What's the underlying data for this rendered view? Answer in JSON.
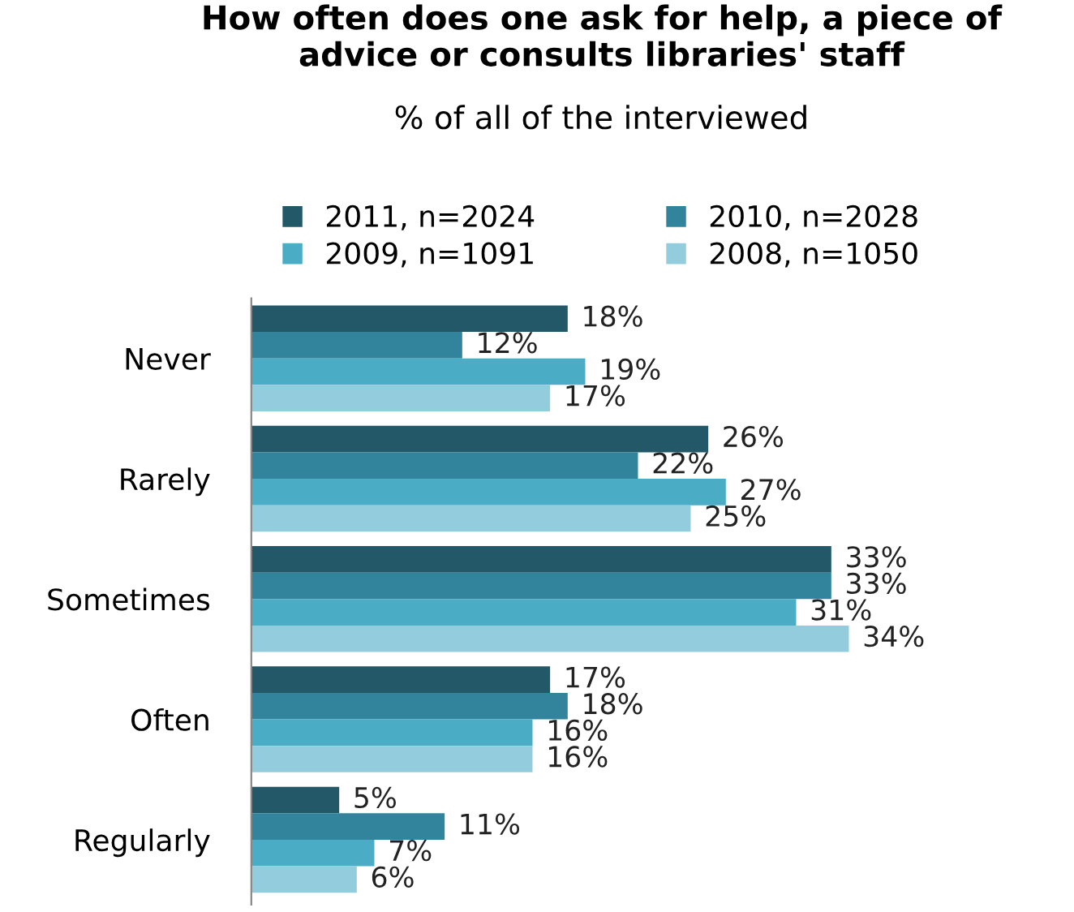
{
  "chart_data": {
    "type": "bar",
    "orientation": "horizontal",
    "title": "How often does one ask for help, a piece of\nadvice or consults libraries' staff",
    "subtitle": "% of all of the interviewed",
    "categories": [
      "Never",
      "Rarely",
      "Sometimes",
      "Often",
      "Regularly"
    ],
    "series": [
      {
        "name": "2011, n=2024",
        "color": "#225868",
        "values": [
          18,
          26,
          33,
          17,
          5
        ],
        "value_labels": [
          "18%",
          "26%",
          "33%",
          "17%",
          "5%"
        ]
      },
      {
        "name": "2010, n=2028",
        "color": "#31849b",
        "values": [
          12,
          22,
          33,
          18,
          11
        ],
        "value_labels": [
          "12%",
          "22%",
          "33%",
          "18%",
          "11%"
        ]
      },
      {
        "name": "2009, n=1091",
        "color": "#4bacc6",
        "values": [
          19,
          27,
          31,
          16,
          7
        ],
        "value_labels": [
          "19%",
          "27%",
          "31%",
          "16%",
          "7%"
        ]
      },
      {
        "name": "2008, n=1050",
        "color": "#93cddd",
        "values": [
          17,
          25,
          34,
          16,
          6
        ],
        "value_labels": [
          "17%",
          "25%",
          "34%",
          "16%",
          "6%"
        ]
      }
    ],
    "legend": "top",
    "grid": false
  }
}
